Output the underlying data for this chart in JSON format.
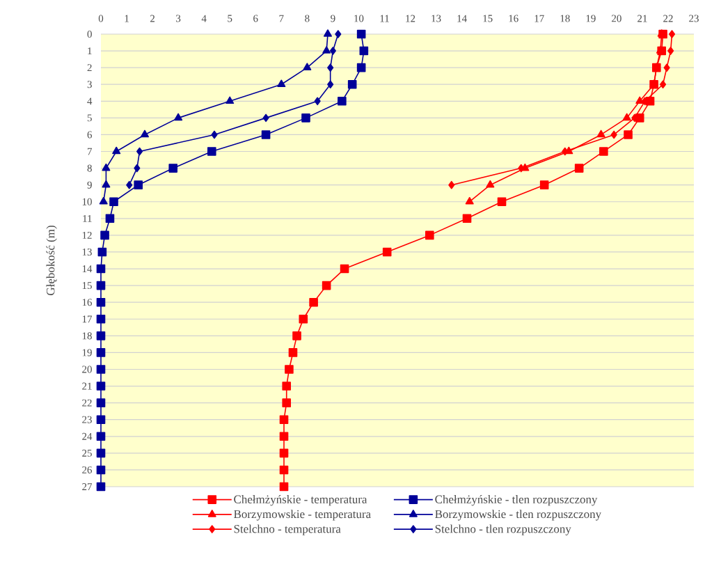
{
  "chart_data": {
    "type": "line",
    "orientation": "horizontal",
    "ylabel": "Głębokość (m)",
    "categories": [
      "0",
      "1",
      "2",
      "3",
      "4",
      "5",
      "6",
      "7",
      "8",
      "9",
      "10",
      "11",
      "12",
      "13",
      "14",
      "15",
      "16",
      "17",
      "18",
      "19",
      "20",
      "21",
      "22",
      "23",
      "24",
      "25",
      "26",
      "27"
    ],
    "xlim": [
      0,
      23
    ],
    "xticks": [
      0,
      1,
      2,
      3,
      4,
      5,
      6,
      7,
      8,
      9,
      10,
      11,
      12,
      13,
      14,
      15,
      16,
      17,
      18,
      19,
      20,
      21,
      22,
      23
    ],
    "grid": "y",
    "legend": "bottom",
    "line_style": "solid",
    "series": [
      {
        "name": "Chełmżyńskie - temperatura",
        "color": "#ff0000",
        "marker": "square",
        "values": [
          21.8,
          21.75,
          21.55,
          21.45,
          21.3,
          20.9,
          20.45,
          19.5,
          18.55,
          17.2,
          15.55,
          14.2,
          12.75,
          11.1,
          9.45,
          8.75,
          8.25,
          7.85,
          7.6,
          7.45,
          7.3,
          7.2,
          7.2,
          7.1,
          7.1,
          7.1,
          7.1,
          7.1
        ]
      },
      {
        "name": "Chełmżyńskie - tlen rozpuszczony",
        "color": "#000099",
        "marker": "square",
        "values": [
          10.1,
          10.2,
          10.1,
          9.75,
          9.35,
          7.95,
          6.4,
          4.3,
          2.8,
          1.45,
          0.5,
          0.35,
          0.15,
          0.05,
          0,
          0,
          0,
          0,
          0,
          0,
          0,
          0,
          0,
          0,
          0,
          0,
          0,
          0
        ]
      },
      {
        "name": "Borzymowskie - temperatura",
        "color": "#ff0000",
        "marker": "triangle",
        "values": [
          21.75,
          21.7,
          21.55,
          21.45,
          20.9,
          20.4,
          19.4,
          18.15,
          16.45,
          15.1,
          14.3,
          null,
          null,
          null,
          null,
          null,
          null,
          null,
          null,
          null,
          null,
          null,
          null,
          null,
          null,
          null,
          null,
          null
        ]
      },
      {
        "name": "Borzymowskie - tlen rozpuszczony",
        "color": "#000099",
        "marker": "triangle",
        "values": [
          8.8,
          8.75,
          8.0,
          7.0,
          5.0,
          3.0,
          1.7,
          0.6,
          0.2,
          0.2,
          0.1,
          null,
          null,
          null,
          null,
          null,
          null,
          null,
          null,
          null,
          null,
          null,
          null,
          null,
          null,
          null,
          null,
          null
        ]
      },
      {
        "name": "Stelchno - temperatura",
        "color": "#ff0000",
        "marker": "diamond",
        "values": [
          22.15,
          22.1,
          21.95,
          21.8,
          21.1,
          20.7,
          19.9,
          18.0,
          16.3,
          13.6,
          null,
          null,
          null,
          null,
          null,
          null,
          null,
          null,
          null,
          null,
          null,
          null,
          null,
          null,
          null,
          null,
          null,
          null
        ]
      },
      {
        "name": "Stelchno - tlen rozpuszczony",
        "color": "#000099",
        "marker": "diamond",
        "values": [
          9.2,
          9.0,
          8.9,
          8.9,
          8.4,
          6.4,
          4.4,
          1.5,
          1.4,
          1.1,
          null,
          null,
          null,
          null,
          null,
          null,
          null,
          null,
          null,
          null,
          null,
          null,
          null,
          null,
          null,
          null,
          null,
          null
        ]
      }
    ]
  }
}
